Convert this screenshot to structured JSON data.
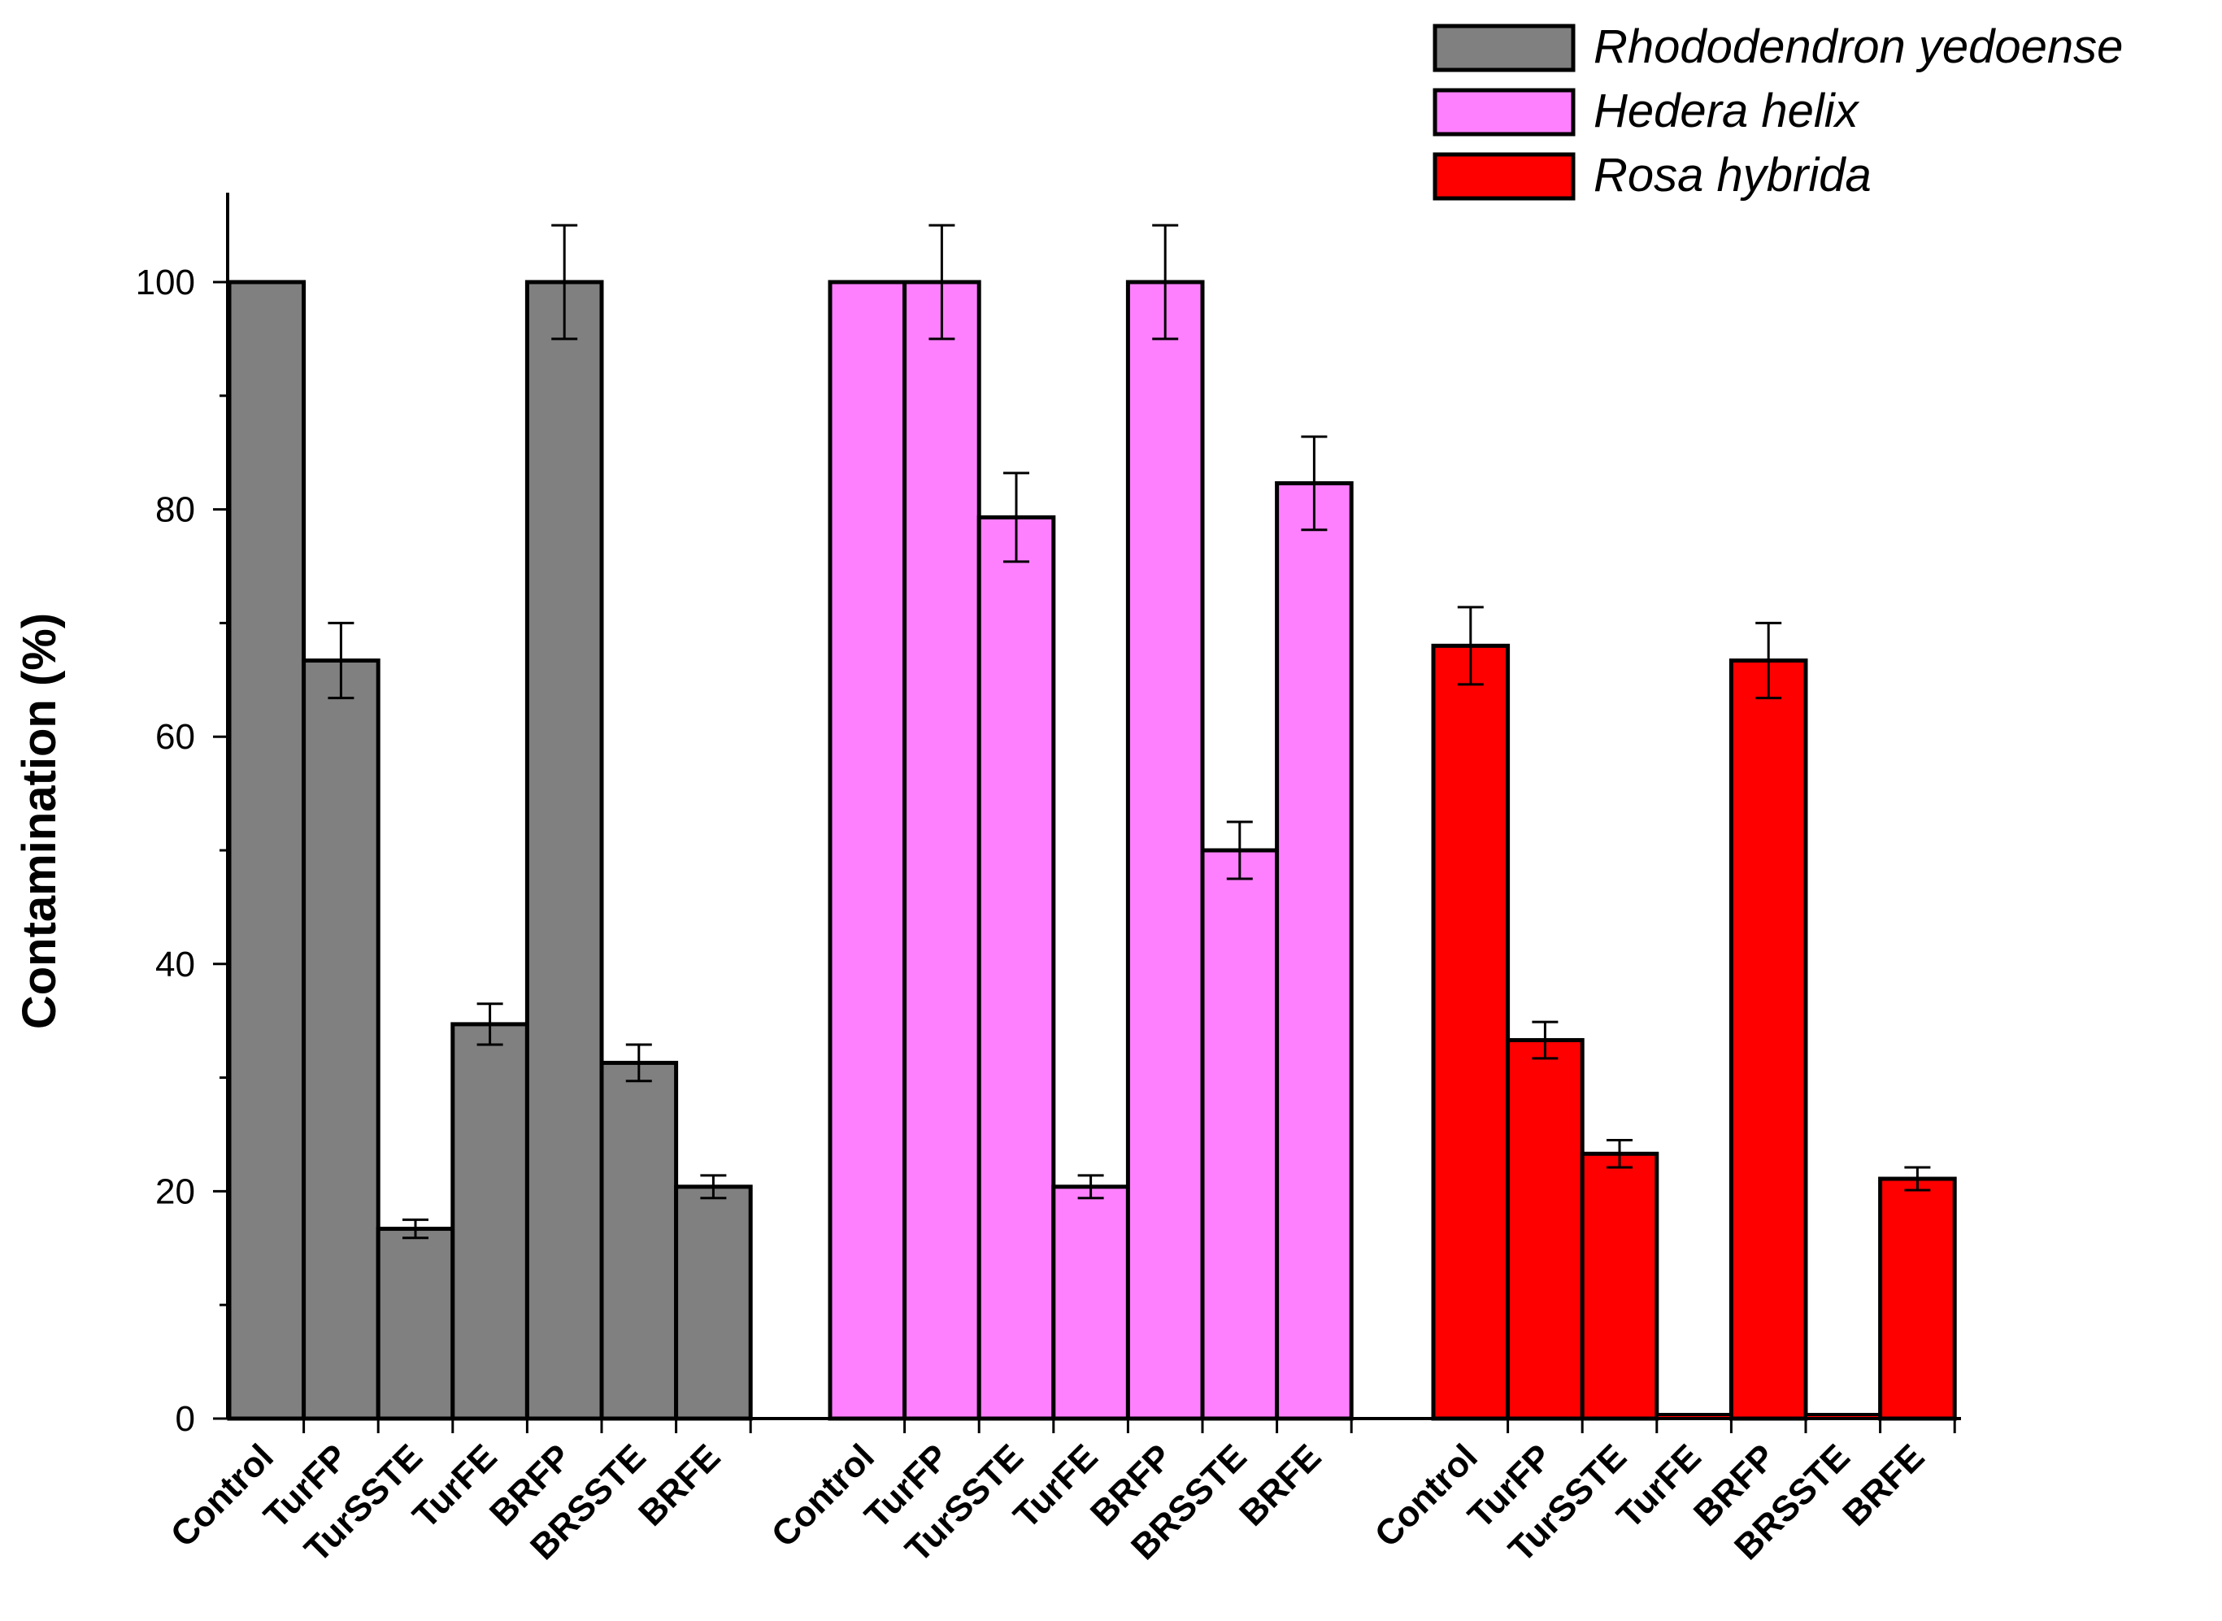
{
  "chart_data": {
    "type": "bar",
    "ylabel": "Contamination (%)",
    "xlabel": "",
    "ylim": [
      0,
      108
    ],
    "yticks": [
      0,
      20,
      40,
      60,
      80,
      100
    ],
    "minor_yticks": [
      10,
      30,
      50,
      70,
      90
    ],
    "grid": false,
    "legend_position": "top-right",
    "groups": [
      {
        "name": "Rhododendron yedoense",
        "color": "#808080",
        "categories": [
          "Control",
          "TurFP",
          "TurSSTE",
          "TurFE",
          "BRFP",
          "BRSSTE",
          "BRFE"
        ],
        "values": [
          100,
          66.7,
          16.7,
          34.7,
          100,
          31.3,
          20.4
        ],
        "errors": [
          0,
          3.3,
          0.8,
          1.8,
          5,
          1.6,
          1.0
        ]
      },
      {
        "name": "Hedera helix",
        "color": "#ff80ff",
        "categories": [
          "Control",
          "TurFP",
          "TurSSTE",
          "TurFE",
          "BRFP",
          "BRSSTE",
          "BRFE"
        ],
        "values": [
          100,
          100,
          79.3,
          20.4,
          100,
          50,
          82.3
        ],
        "errors": [
          0,
          5,
          3.9,
          1.0,
          5,
          2.5,
          4.1
        ]
      },
      {
        "name": "Rosa hybrida",
        "color": "#ff0000",
        "categories": [
          "Control",
          "TurFP",
          "TurSSTE",
          "TurFE",
          "BRFP",
          "BRSSTE",
          "BRFE"
        ],
        "values": [
          68,
          33.3,
          23.3,
          0,
          66.7,
          0,
          21.1
        ],
        "errors": [
          3.4,
          1.6,
          1.2,
          0,
          3.3,
          0,
          1.0
        ]
      }
    ]
  }
}
